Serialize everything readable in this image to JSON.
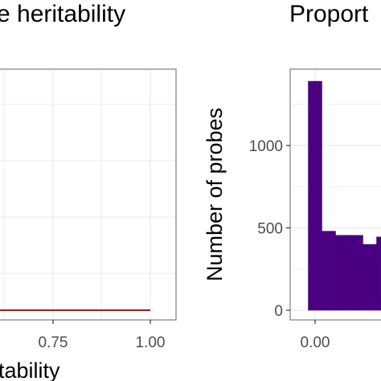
{
  "colors": {
    "bar_fill": "#4b0082",
    "line": "#8b1a1a",
    "panel_border": "#7f7f7f",
    "grid": "#ebebeb"
  },
  "chart_data": [
    {
      "type": "line",
      "title": "e heritability",
      "xlabel": "tability",
      "ylabel": "",
      "xlim": [
        0.6,
        1.05
      ],
      "x_ticks": [
        "0.75",
        "1.00"
      ],
      "x_tick_values": [
        0.75,
        1.0
      ],
      "series": [
        {
          "x": [
            0.6,
            0.7,
            0.8,
            0.9,
            1.0
          ],
          "y": [
            0.002,
            0.001,
            0.001,
            0.001,
            0.001
          ]
        }
      ],
      "grid": true
    },
    {
      "type": "bar",
      "title": "Proport",
      "xlabel": "",
      "ylabel": "Number of probes",
      "ylim": [
        -50,
        1450
      ],
      "y_ticks": [
        "0",
        "500",
        "1000"
      ],
      "y_tick_values": [
        0,
        500,
        1000
      ],
      "x_ticks": [
        "0.00"
      ],
      "x_tick_values": [
        0.0
      ],
      "bin_width": 0.05,
      "bins_start": [
        -0.025,
        0.025,
        0.075,
        0.125,
        0.175,
        0.225
      ],
      "values": [
        1390,
        480,
        455,
        455,
        400,
        445
      ],
      "grid": true
    }
  ]
}
